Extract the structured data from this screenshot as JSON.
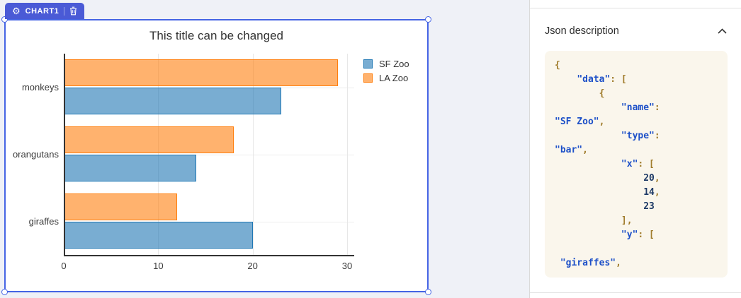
{
  "canvas": {
    "badge": {
      "label": "CHART1"
    }
  },
  "chart_data": {
    "type": "bar",
    "orientation": "horizontal",
    "title": "This title can be changed",
    "categories": [
      "giraffes",
      "orangutans",
      "monkeys"
    ],
    "series": [
      {
        "name": "SF Zoo",
        "values": [
          20,
          14,
          23
        ],
        "fill": "rgba(31,119,180,0.6)",
        "stroke": "#1f77b4"
      },
      {
        "name": "LA Zoo",
        "values": [
          12,
          18,
          29
        ],
        "fill": "rgba(255,127,14,0.6)",
        "stroke": "#ff7f0e"
      }
    ],
    "x_ticks": [
      0,
      10,
      20,
      30
    ],
    "xlim": [
      0,
      30.75
    ],
    "grid": true,
    "legend_position": "top-right"
  },
  "panel": {
    "header": "Json description",
    "code_lines": [
      [
        {
          "c": "p",
          "t": "{"
        }
      ],
      [
        {
          "c": "w",
          "t": "    "
        },
        {
          "c": "k",
          "t": "\"data\""
        },
        {
          "c": "p",
          "t": ": ["
        }
      ],
      [
        {
          "c": "w",
          "t": "        "
        },
        {
          "c": "p",
          "t": "{"
        }
      ],
      [
        {
          "c": "w",
          "t": "            "
        },
        {
          "c": "k",
          "t": "\"name\""
        },
        {
          "c": "p",
          "t": ":"
        }
      ],
      [
        {
          "c": "k",
          "t": "\"SF Zoo\""
        },
        {
          "c": "p",
          "t": ","
        }
      ],
      [
        {
          "c": "w",
          "t": "            "
        },
        {
          "c": "k",
          "t": "\"type\""
        },
        {
          "c": "p",
          "t": ":"
        }
      ],
      [
        {
          "c": "k",
          "t": "\"bar\""
        },
        {
          "c": "p",
          "t": ","
        }
      ],
      [
        {
          "c": "w",
          "t": "            "
        },
        {
          "c": "k",
          "t": "\"x\""
        },
        {
          "c": "p",
          "t": ": ["
        }
      ],
      [
        {
          "c": "w",
          "t": "                "
        },
        {
          "c": "n",
          "t": "20"
        },
        {
          "c": "p",
          "t": ","
        }
      ],
      [
        {
          "c": "w",
          "t": "                "
        },
        {
          "c": "n",
          "t": "14"
        },
        {
          "c": "p",
          "t": ","
        }
      ],
      [
        {
          "c": "w",
          "t": "                "
        },
        {
          "c": "n",
          "t": "23"
        }
      ],
      [
        {
          "c": "w",
          "t": "            "
        },
        {
          "c": "p",
          "t": "],"
        }
      ],
      [
        {
          "c": "w",
          "t": "            "
        },
        {
          "c": "k",
          "t": "\"y\""
        },
        {
          "c": "p",
          "t": ": ["
        }
      ],
      [],
      [
        {
          "c": "w",
          "t": " "
        },
        {
          "c": "k",
          "t": "\"giraffes\""
        },
        {
          "c": "p",
          "t": ","
        }
      ]
    ]
  },
  "colors": {
    "accent_blue": "#4564e4",
    "badge_blue": "#4a5ad6",
    "canvas_bg": "#eff1f7",
    "code_bg": "#faf6ec",
    "code_key": "#1d50c8",
    "code_punct": "#a07c2c",
    "code_number": "#1e3a66"
  }
}
